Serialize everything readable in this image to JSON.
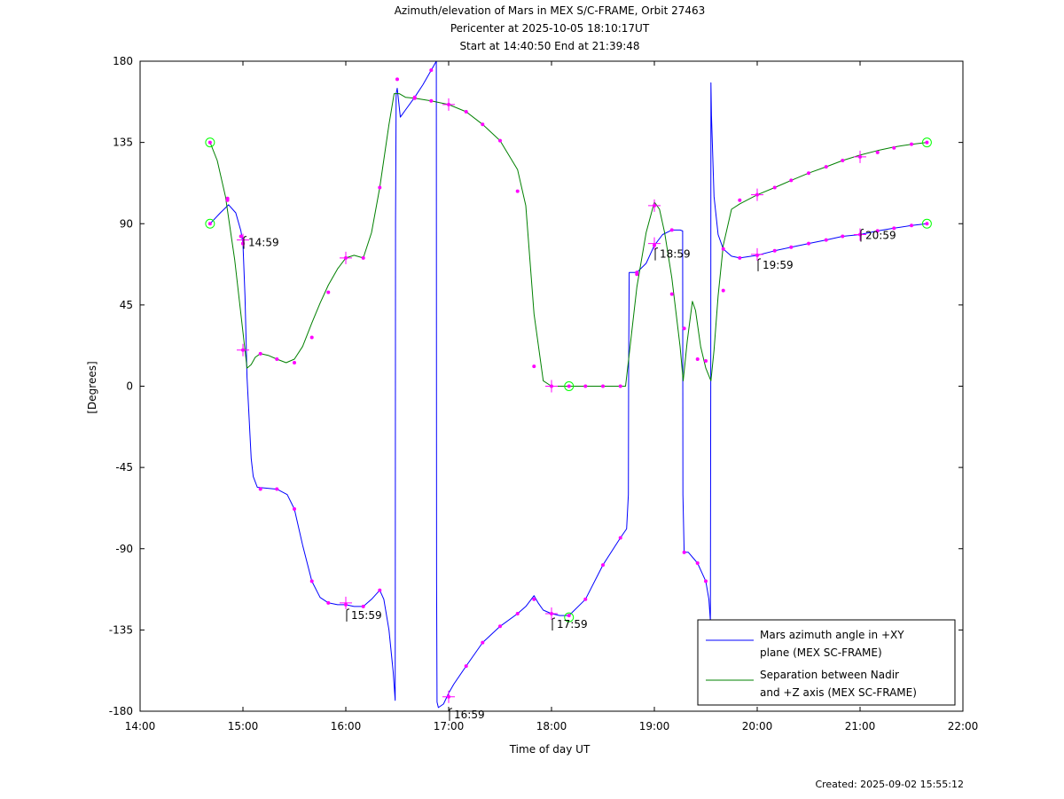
{
  "titles": {
    "line1": "Azimuth/elevation of Mars in MEX S/C-FRAME,  Orbit 27463",
    "line2": "Pericenter at 2025-10-05 18:10:17UT",
    "line3": "Start at 14:40:50 End at 21:39:48"
  },
  "footer": {
    "created": "Created: 2025-09-02 15:55:12"
  },
  "chart_data": {
    "type": "line",
    "xlabel": "Time of day UT",
    "ylabel": "[Degrees]",
    "xlim": [
      14.0,
      22.0
    ],
    "ylim": [
      -180,
      180
    ],
    "x_ticks": [
      {
        "value": 14,
        "label": "14:00"
      },
      {
        "value": 15,
        "label": "15:00"
      },
      {
        "value": 16,
        "label": "16:00"
      },
      {
        "value": 17,
        "label": "17:00"
      },
      {
        "value": 18,
        "label": "18:00"
      },
      {
        "value": 19,
        "label": "19:00"
      },
      {
        "value": 20,
        "label": "20:00"
      },
      {
        "value": 21,
        "label": "21:00"
      },
      {
        "value": 22,
        "label": "22:00"
      }
    ],
    "y_ticks": [
      {
        "value": 180,
        "label": "180"
      },
      {
        "value": 135,
        "label": "135"
      },
      {
        "value": 90,
        "label": "90"
      },
      {
        "value": 45,
        "label": "45"
      },
      {
        "value": 0,
        "label": "0"
      },
      {
        "value": -45,
        "label": "-45"
      },
      {
        "value": -90,
        "label": "-90"
      },
      {
        "value": -135,
        "label": "-135"
      },
      {
        "value": -180,
        "label": "-180"
      }
    ],
    "grid": false,
    "legend_position": "bottom-right",
    "series": [
      {
        "name": "Mars azimuth angle in +XY plane (MEX SC-FRAME)",
        "legend_lines": [
          "Mars azimuth angle in +XY",
          "plane (MEX SC-FRAME)"
        ],
        "color": "#0000ff",
        "points": [
          [
            14.68,
            90
          ],
          [
            14.78,
            96
          ],
          [
            14.86,
            100.5
          ],
          [
            14.93,
            96
          ],
          [
            14.98,
            86
          ],
          [
            15.0,
            79
          ],
          [
            15.02,
            50
          ],
          [
            15.04,
            5
          ],
          [
            15.06,
            -18
          ],
          [
            15.08,
            -40
          ],
          [
            15.1,
            -50
          ],
          [
            15.14,
            -56
          ],
          [
            15.33,
            -57
          ],
          [
            15.43,
            -60
          ],
          [
            15.5,
            -68
          ],
          [
            15.58,
            -88
          ],
          [
            15.67,
            -108
          ],
          [
            15.75,
            -117
          ],
          [
            15.83,
            -120
          ],
          [
            15.92,
            -121
          ],
          [
            16.0,
            -121
          ],
          [
            16.08,
            -122
          ],
          [
            16.17,
            -122
          ],
          [
            16.25,
            -118
          ],
          [
            16.33,
            -113
          ],
          [
            16.37,
            -118
          ],
          [
            16.42,
            -135
          ],
          [
            16.46,
            -158
          ],
          [
            16.48,
            -174
          ],
          [
            16.484,
            90
          ],
          [
            16.49,
            162
          ],
          [
            16.5,
            165
          ],
          [
            16.53,
            149
          ],
          [
            16.58,
            153
          ],
          [
            16.67,
            160
          ],
          [
            16.75,
            167
          ],
          [
            16.83,
            175
          ],
          [
            16.88,
            180
          ],
          [
            16.883,
            -108
          ],
          [
            16.887,
            -175
          ],
          [
            16.9,
            -178
          ],
          [
            16.95,
            -176
          ],
          [
            17.0,
            -170
          ],
          [
            17.05,
            -165
          ],
          [
            17.17,
            -155
          ],
          [
            17.33,
            -142
          ],
          [
            17.5,
            -133
          ],
          [
            17.67,
            -126
          ],
          [
            17.75,
            -122
          ],
          [
            17.83,
            -116
          ],
          [
            17.87,
            -120
          ],
          [
            17.92,
            -124
          ],
          [
            18.0,
            -126
          ],
          [
            18.08,
            -127
          ],
          [
            18.17,
            -127
          ],
          [
            18.33,
            -118
          ],
          [
            18.5,
            -99
          ],
          [
            18.67,
            -84
          ],
          [
            18.73,
            -79
          ],
          [
            18.747,
            -60
          ],
          [
            18.75,
            10
          ],
          [
            18.755,
            63
          ],
          [
            18.78,
            63
          ],
          [
            18.83,
            63
          ],
          [
            18.92,
            68
          ],
          [
            19.0,
            78
          ],
          [
            19.08,
            84
          ],
          [
            19.17,
            86.5
          ],
          [
            19.25,
            86.5
          ],
          [
            19.275,
            86
          ],
          [
            19.278,
            -60
          ],
          [
            19.29,
            -92
          ],
          [
            19.33,
            -92
          ],
          [
            19.42,
            -98
          ],
          [
            19.5,
            -108
          ],
          [
            19.53,
            -118
          ],
          [
            19.545,
            -130
          ],
          [
            19.548,
            0
          ],
          [
            19.55,
            168
          ],
          [
            19.555,
            150
          ],
          [
            19.58,
            105
          ],
          [
            19.62,
            84
          ],
          [
            19.67,
            76
          ],
          [
            19.75,
            72
          ],
          [
            19.83,
            71
          ],
          [
            20.0,
            72.5
          ],
          [
            20.17,
            75
          ],
          [
            20.33,
            77
          ],
          [
            20.5,
            79
          ],
          [
            20.67,
            81
          ],
          [
            20.83,
            83
          ],
          [
            21.0,
            84
          ],
          [
            21.17,
            86
          ],
          [
            21.33,
            87.5
          ],
          [
            21.5,
            89
          ],
          [
            21.65,
            90
          ]
        ]
      },
      {
        "name": "Separation between Nadir and +Z axis (MEX SC-FRAME)",
        "legend_lines": [
          "Separation between Nadir",
          "and +Z axis (MEX SC-FRAME)"
        ],
        "color": "#008000",
        "points": [
          [
            14.68,
            135
          ],
          [
            14.75,
            125
          ],
          [
            14.83,
            105
          ],
          [
            14.92,
            70
          ],
          [
            15.0,
            30
          ],
          [
            15.04,
            10
          ],
          [
            15.08,
            12
          ],
          [
            15.12,
            16
          ],
          [
            15.17,
            18
          ],
          [
            15.25,
            17
          ],
          [
            15.33,
            15
          ],
          [
            15.42,
            13
          ],
          [
            15.5,
            15
          ],
          [
            15.58,
            22
          ],
          [
            15.67,
            35
          ],
          [
            15.75,
            46
          ],
          [
            15.83,
            56
          ],
          [
            15.92,
            65
          ],
          [
            16.0,
            71
          ],
          [
            16.08,
            72.5
          ],
          [
            16.17,
            71
          ],
          [
            16.25,
            85
          ],
          [
            16.33,
            110
          ],
          [
            16.42,
            145
          ],
          [
            16.47,
            162
          ],
          [
            16.52,
            162
          ],
          [
            16.58,
            160
          ],
          [
            16.67,
            159.5
          ],
          [
            16.83,
            158
          ],
          [
            17.0,
            156
          ],
          [
            17.17,
            152
          ],
          [
            17.33,
            145
          ],
          [
            17.5,
            136
          ],
          [
            17.67,
            120
          ],
          [
            17.75,
            100
          ],
          [
            17.83,
            40
          ],
          [
            17.92,
            3
          ],
          [
            18.0,
            0
          ],
          [
            18.5,
            0
          ],
          [
            18.72,
            0
          ],
          [
            18.75,
            15
          ],
          [
            18.83,
            55
          ],
          [
            18.92,
            85
          ],
          [
            19.0,
            102
          ],
          [
            19.05,
            98
          ],
          [
            19.1,
            85
          ],
          [
            19.17,
            60
          ],
          [
            19.25,
            22
          ],
          [
            19.28,
            3
          ],
          [
            19.32,
            25
          ],
          [
            19.37,
            47
          ],
          [
            19.4,
            42
          ],
          [
            19.45,
            22
          ],
          [
            19.5,
            10
          ],
          [
            19.55,
            3
          ],
          [
            19.58,
            20
          ],
          [
            19.62,
            50
          ],
          [
            19.67,
            78
          ],
          [
            19.75,
            98
          ],
          [
            19.83,
            101
          ],
          [
            20.0,
            106
          ],
          [
            20.17,
            110
          ],
          [
            20.33,
            114
          ],
          [
            20.5,
            118
          ],
          [
            20.67,
            121.5
          ],
          [
            20.83,
            125
          ],
          [
            21.0,
            128
          ],
          [
            21.17,
            130.5
          ],
          [
            21.33,
            132.5
          ],
          [
            21.5,
            134
          ],
          [
            21.65,
            135
          ]
        ]
      }
    ],
    "markers": [
      [
        14.68,
        90
      ],
      [
        14.85,
        103
      ],
      [
        14.98,
        83
      ],
      [
        15.0,
        79
      ],
      [
        15.0,
        79
      ],
      [
        15.17,
        -57
      ],
      [
        15.33,
        -57
      ],
      [
        15.5,
        -68
      ],
      [
        15.67,
        -108
      ],
      [
        15.83,
        -120
      ],
      [
        16.0,
        -121
      ],
      [
        16.17,
        -122
      ],
      [
        16.33,
        -113
      ],
      [
        16.67,
        160
      ],
      [
        16.83,
        175
      ],
      [
        17.0,
        -172
      ],
      [
        17.17,
        -155
      ],
      [
        17.33,
        -142
      ],
      [
        17.5,
        -133
      ],
      [
        17.67,
        -126
      ],
      [
        17.83,
        -118
      ],
      [
        18.0,
        -126
      ],
      [
        18.17,
        -127
      ],
      [
        18.33,
        -118
      ],
      [
        18.5,
        -99
      ],
      [
        18.67,
        -84
      ],
      [
        18.83,
        63
      ],
      [
        19.0,
        78
      ],
      [
        19.17,
        86.5
      ],
      [
        19.29,
        -92
      ],
      [
        19.42,
        -98
      ],
      [
        19.5,
        -108
      ],
      [
        19.67,
        76
      ],
      [
        19.83,
        71
      ],
      [
        20.0,
        72.5
      ],
      [
        20.17,
        75
      ],
      [
        20.33,
        77
      ],
      [
        20.5,
        79
      ],
      [
        20.67,
        81
      ],
      [
        20.83,
        83
      ],
      [
        21.0,
        84
      ],
      [
        21.17,
        86
      ],
      [
        21.33,
        87.5
      ],
      [
        21.5,
        89
      ],
      [
        21.65,
        90
      ],
      [
        14.68,
        135
      ],
      [
        14.85,
        104
      ],
      [
        15.0,
        20
      ],
      [
        15.17,
        18
      ],
      [
        15.33,
        15
      ],
      [
        15.5,
        13
      ],
      [
        15.67,
        27
      ],
      [
        15.83,
        52
      ],
      [
        16.0,
        71
      ],
      [
        16.17,
        71
      ],
      [
        16.33,
        110
      ],
      [
        16.5,
        170
      ],
      [
        16.67,
        159.5
      ],
      [
        16.83,
        158
      ],
      [
        17.0,
        156
      ],
      [
        17.17,
        152
      ],
      [
        17.33,
        145
      ],
      [
        17.5,
        136
      ],
      [
        17.67,
        108
      ],
      [
        17.83,
        11
      ],
      [
        18.0,
        0
      ],
      [
        18.17,
        0
      ],
      [
        18.33,
        0
      ],
      [
        18.5,
        0
      ],
      [
        18.67,
        0
      ],
      [
        18.83,
        62
      ],
      [
        19.0,
        100
      ],
      [
        19.17,
        51
      ],
      [
        19.29,
        32
      ],
      [
        19.42,
        15
      ],
      [
        19.5,
        14
      ],
      [
        19.67,
        53
      ],
      [
        19.83,
        103
      ],
      [
        20.0,
        106
      ],
      [
        20.17,
        110
      ],
      [
        20.33,
        114
      ],
      [
        20.5,
        118
      ],
      [
        20.67,
        121.5
      ],
      [
        20.83,
        125
      ],
      [
        21.0,
        127
      ],
      [
        21.17,
        129.5
      ],
      [
        21.33,
        132
      ],
      [
        21.5,
        134
      ],
      [
        21.65,
        135
      ]
    ],
    "cross_markers": [
      [
        15.0,
        81
      ],
      [
        15.0,
        20
      ],
      [
        16.0,
        71
      ],
      [
        16.0,
        -120
      ],
      [
        17.0,
        156
      ],
      [
        17.0,
        -172
      ],
      [
        18.0,
        0
      ],
      [
        18.0,
        -126
      ],
      [
        19.0,
        100
      ],
      [
        19.0,
        79
      ],
      [
        20.0,
        106
      ],
      [
        20.0,
        73
      ],
      [
        21.0,
        127
      ],
      [
        21.0,
        84
      ]
    ],
    "circle_markers": [
      {
        "x": 14.68,
        "y": 135,
        "color": "#00ff00"
      },
      {
        "x": 14.68,
        "y": 90,
        "color": "#00ff00"
      },
      {
        "x": 18.17,
        "y": 0,
        "color": "#00ff00"
      },
      {
        "x": 18.17,
        "y": -128,
        "color": "#00ff00"
      },
      {
        "x": 21.65,
        "y": 135,
        "color": "#00ff00"
      },
      {
        "x": 21.65,
        "y": 90,
        "color": "#00ff00"
      }
    ],
    "annotations": [
      {
        "x": 15.0,
        "y": 80,
        "text": "14:59",
        "dy": -6
      },
      {
        "x": 16.0,
        "y": -121,
        "text": "15:59",
        "dy": 5
      },
      {
        "x": 17.0,
        "y": -176,
        "text": "16:59",
        "dy": 5
      },
      {
        "x": 18.0,
        "y": -126,
        "text": "17:59",
        "dy": 5
      },
      {
        "x": 19.0,
        "y": 79,
        "text": "18:59",
        "dy": 5
      },
      {
        "x": 20.0,
        "y": 73,
        "text": "19:59",
        "dy": 5
      },
      {
        "x": 21.0,
        "y": 84,
        "text": "20:59",
        "dy": -6
      }
    ]
  }
}
